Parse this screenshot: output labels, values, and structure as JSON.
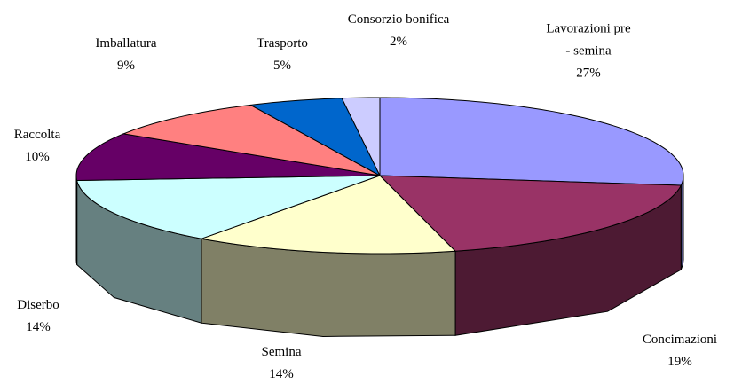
{
  "chart_data": {
    "type": "pie3d",
    "categories": [
      "Lavorazioni pre - semina",
      "Concimazioni",
      "Semina",
      "Diserbo",
      "Raccolta",
      "Imballatura",
      "Trasporto",
      "Consorzio bonifica"
    ],
    "values": [
      27,
      19,
      14,
      14,
      10,
      9,
      5,
      2
    ],
    "value_labels": [
      "27%",
      "19%",
      "14%",
      "14%",
      "10%",
      "9%",
      "5%",
      "2%"
    ],
    "colors": [
      "#9999ff",
      "#993366",
      "#ffffcc",
      "#ccffff",
      "#660066",
      "#ff8080",
      "#0066cc",
      "#ccccff"
    ]
  }
}
